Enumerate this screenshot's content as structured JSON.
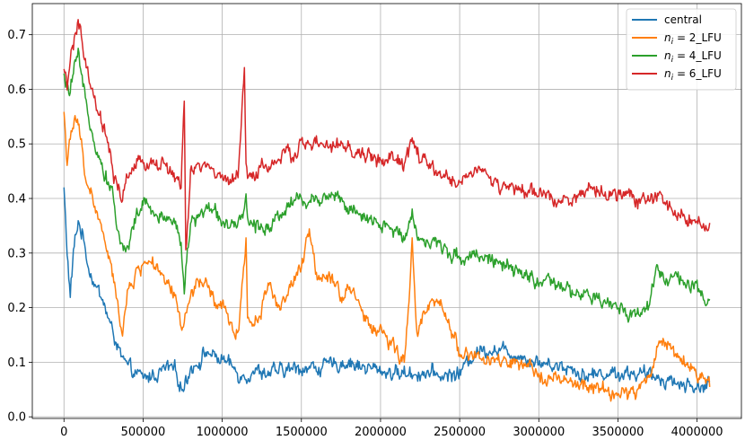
{
  "chart_data": {
    "type": "line",
    "title": "",
    "xlabel": "",
    "ylabel": "",
    "xlim": [
      -200000,
      4280000
    ],
    "ylim": [
      -0.003,
      0.757
    ],
    "xticks": [
      0,
      500000,
      1000000,
      1500000,
      2000000,
      2500000,
      3000000,
      3500000,
      4000000
    ],
    "yticks": [
      0.0,
      0.1,
      0.2,
      0.3,
      0.4,
      0.5,
      0.6,
      0.7
    ],
    "xtick_labels": [
      "0",
      "500000",
      "1000000",
      "1500000",
      "2000000",
      "2500000",
      "3000000",
      "3500000",
      "4000000"
    ],
    "ytick_labels": [
      "0.0",
      "0.1",
      "0.2",
      "0.3",
      "0.4",
      "0.5",
      "0.6",
      "0.7"
    ],
    "grid": true,
    "legend_position": "top-right",
    "series": [
      {
        "name": "central",
        "color": "#1f77b4",
        "points": [
          [
            0,
            0.42
          ],
          [
            20000,
            0.3
          ],
          [
            40000,
            0.22
          ],
          [
            60000,
            0.3
          ],
          [
            90000,
            0.36
          ],
          [
            120000,
            0.33
          ],
          [
            160000,
            0.27
          ],
          [
            200000,
            0.24
          ],
          [
            250000,
            0.21
          ],
          [
            300000,
            0.16
          ],
          [
            330000,
            0.14
          ],
          [
            360000,
            0.11
          ],
          [
            400000,
            0.09
          ],
          [
            450000,
            0.08
          ],
          [
            500000,
            0.07
          ],
          [
            550000,
            0.075
          ],
          [
            600000,
            0.08
          ],
          [
            650000,
            0.09
          ],
          [
            700000,
            0.085
          ],
          [
            750000,
            0.05
          ],
          [
            800000,
            0.09
          ],
          [
            850000,
            0.1
          ],
          [
            900000,
            0.12
          ],
          [
            950000,
            0.11
          ],
          [
            1000000,
            0.105
          ],
          [
            1050000,
            0.095
          ],
          [
            1100000,
            0.08
          ],
          [
            1150000,
            0.075
          ],
          [
            1200000,
            0.085
          ],
          [
            1300000,
            0.08
          ],
          [
            1400000,
            0.085
          ],
          [
            1500000,
            0.09
          ],
          [
            1600000,
            0.09
          ],
          [
            1700000,
            0.095
          ],
          [
            1800000,
            0.1
          ],
          [
            1900000,
            0.09
          ],
          [
            2000000,
            0.085
          ],
          [
            2100000,
            0.08
          ],
          [
            2200000,
            0.08
          ],
          [
            2300000,
            0.08
          ],
          [
            2400000,
            0.075
          ],
          [
            2500000,
            0.08
          ],
          [
            2550000,
            0.1
          ],
          [
            2600000,
            0.12
          ],
          [
            2700000,
            0.125
          ],
          [
            2800000,
            0.12
          ],
          [
            2900000,
            0.11
          ],
          [
            3000000,
            0.1
          ],
          [
            3100000,
            0.095
          ],
          [
            3200000,
            0.09
          ],
          [
            3300000,
            0.075
          ],
          [
            3400000,
            0.08
          ],
          [
            3500000,
            0.08
          ],
          [
            3600000,
            0.08
          ],
          [
            3700000,
            0.075
          ],
          [
            3800000,
            0.07
          ],
          [
            3900000,
            0.06
          ],
          [
            4000000,
            0.055
          ],
          [
            4080000,
            0.06
          ]
        ]
      },
      {
        "name": "n_i = 2_LFU",
        "color": "#ff7f0e",
        "points": [
          [
            0,
            0.56
          ],
          [
            20000,
            0.47
          ],
          [
            40000,
            0.5
          ],
          [
            70000,
            0.55
          ],
          [
            100000,
            0.52
          ],
          [
            130000,
            0.45
          ],
          [
            160000,
            0.42
          ],
          [
            200000,
            0.38
          ],
          [
            250000,
            0.33
          ],
          [
            300000,
            0.27
          ],
          [
            340000,
            0.2
          ],
          [
            370000,
            0.16
          ],
          [
            400000,
            0.22
          ],
          [
            450000,
            0.26
          ],
          [
            500000,
            0.28
          ],
          [
            550000,
            0.29
          ],
          [
            600000,
            0.26
          ],
          [
            650000,
            0.24
          ],
          [
            700000,
            0.22
          ],
          [
            750000,
            0.16
          ],
          [
            800000,
            0.22
          ],
          [
            850000,
            0.25
          ],
          [
            900000,
            0.24
          ],
          [
            950000,
            0.21
          ],
          [
            1000000,
            0.2
          ],
          [
            1050000,
            0.17
          ],
          [
            1100000,
            0.15
          ],
          [
            1150000,
            0.33
          ],
          [
            1160000,
            0.18
          ],
          [
            1200000,
            0.17
          ],
          [
            1250000,
            0.2
          ],
          [
            1300000,
            0.25
          ],
          [
            1350000,
            0.2
          ],
          [
            1400000,
            0.22
          ],
          [
            1450000,
            0.25
          ],
          [
            1500000,
            0.27
          ],
          [
            1550000,
            0.34
          ],
          [
            1600000,
            0.26
          ],
          [
            1700000,
            0.26
          ],
          [
            1750000,
            0.22
          ],
          [
            1800000,
            0.24
          ],
          [
            1850000,
            0.22
          ],
          [
            1900000,
            0.18
          ],
          [
            1950000,
            0.16
          ],
          [
            2000000,
            0.16
          ],
          [
            2050000,
            0.14
          ],
          [
            2100000,
            0.12
          ],
          [
            2150000,
            0.1
          ],
          [
            2180000,
            0.2
          ],
          [
            2200000,
            0.34
          ],
          [
            2230000,
            0.15
          ],
          [
            2300000,
            0.2
          ],
          [
            2350000,
            0.21
          ],
          [
            2400000,
            0.19
          ],
          [
            2450000,
            0.16
          ],
          [
            2500000,
            0.12
          ],
          [
            2600000,
            0.11
          ],
          [
            2700000,
            0.1
          ],
          [
            2800000,
            0.1
          ],
          [
            2900000,
            0.09
          ],
          [
            3000000,
            0.08
          ],
          [
            3100000,
            0.07
          ],
          [
            3200000,
            0.06
          ],
          [
            3300000,
            0.055
          ],
          [
            3400000,
            0.05
          ],
          [
            3500000,
            0.04
          ],
          [
            3600000,
            0.045
          ],
          [
            3700000,
            0.07
          ],
          [
            3750000,
            0.13
          ],
          [
            3800000,
            0.14
          ],
          [
            3850000,
            0.12
          ],
          [
            3900000,
            0.11
          ],
          [
            3950000,
            0.09
          ],
          [
            4000000,
            0.08
          ],
          [
            4080000,
            0.06
          ]
        ]
      },
      {
        "name": "n_i = 4_LFU",
        "color": "#2ca02c",
        "points": [
          [
            0,
            0.62
          ],
          [
            30000,
            0.59
          ],
          [
            60000,
            0.63
          ],
          [
            90000,
            0.66
          ],
          [
            120000,
            0.6
          ],
          [
            160000,
            0.55
          ],
          [
            200000,
            0.5
          ],
          [
            250000,
            0.45
          ],
          [
            300000,
            0.42
          ],
          [
            340000,
            0.34
          ],
          [
            380000,
            0.3
          ],
          [
            420000,
            0.33
          ],
          [
            460000,
            0.37
          ],
          [
            500000,
            0.39
          ],
          [
            550000,
            0.38
          ],
          [
            600000,
            0.36
          ],
          [
            650000,
            0.37
          ],
          [
            700000,
            0.36
          ],
          [
            740000,
            0.32
          ],
          [
            760000,
            0.24
          ],
          [
            800000,
            0.35
          ],
          [
            850000,
            0.37
          ],
          [
            900000,
            0.38
          ],
          [
            950000,
            0.38
          ],
          [
            1000000,
            0.36
          ],
          [
            1050000,
            0.35
          ],
          [
            1100000,
            0.34
          ],
          [
            1150000,
            0.4
          ],
          [
            1160000,
            0.36
          ],
          [
            1200000,
            0.35
          ],
          [
            1300000,
            0.35
          ],
          [
            1350000,
            0.37
          ],
          [
            1400000,
            0.38
          ],
          [
            1450000,
            0.4
          ],
          [
            1500000,
            0.4
          ],
          [
            1550000,
            0.39
          ],
          [
            1600000,
            0.4
          ],
          [
            1700000,
            0.41
          ],
          [
            1750000,
            0.4
          ],
          [
            1800000,
            0.38
          ],
          [
            1850000,
            0.37
          ],
          [
            1900000,
            0.36
          ],
          [
            2000000,
            0.35
          ],
          [
            2100000,
            0.34
          ],
          [
            2150000,
            0.33
          ],
          [
            2200000,
            0.38
          ],
          [
            2230000,
            0.33
          ],
          [
            2300000,
            0.32
          ],
          [
            2400000,
            0.31
          ],
          [
            2500000,
            0.29
          ],
          [
            2600000,
            0.3
          ],
          [
            2700000,
            0.29
          ],
          [
            2800000,
            0.27
          ],
          [
            2900000,
            0.26
          ],
          [
            3000000,
            0.25
          ],
          [
            3100000,
            0.24
          ],
          [
            3200000,
            0.23
          ],
          [
            3300000,
            0.22
          ],
          [
            3400000,
            0.21
          ],
          [
            3500000,
            0.2
          ],
          [
            3600000,
            0.19
          ],
          [
            3650000,
            0.19
          ],
          [
            3700000,
            0.21
          ],
          [
            3750000,
            0.28
          ],
          [
            3800000,
            0.25
          ],
          [
            3850000,
            0.26
          ],
          [
            3900000,
            0.25
          ],
          [
            3950000,
            0.24
          ],
          [
            4000000,
            0.23
          ],
          [
            4050000,
            0.21
          ],
          [
            4080000,
            0.2
          ]
        ]
      },
      {
        "name": "n_i = 6_LFU",
        "color": "#d62728",
        "points": [
          [
            0,
            0.63
          ],
          [
            20000,
            0.6
          ],
          [
            40000,
            0.66
          ],
          [
            70000,
            0.7
          ],
          [
            100000,
            0.72
          ],
          [
            130000,
            0.65
          ],
          [
            170000,
            0.6
          ],
          [
            210000,
            0.56
          ],
          [
            250000,
            0.53
          ],
          [
            290000,
            0.48
          ],
          [
            320000,
            0.43
          ],
          [
            360000,
            0.4
          ],
          [
            400000,
            0.44
          ],
          [
            450000,
            0.46
          ],
          [
            500000,
            0.46
          ],
          [
            550000,
            0.47
          ],
          [
            600000,
            0.46
          ],
          [
            650000,
            0.46
          ],
          [
            700000,
            0.44
          ],
          [
            740000,
            0.42
          ],
          [
            760000,
            0.58
          ],
          [
            770000,
            0.3
          ],
          [
            800000,
            0.44
          ],
          [
            850000,
            0.46
          ],
          [
            900000,
            0.46
          ],
          [
            950000,
            0.45
          ],
          [
            1000000,
            0.43
          ],
          [
            1050000,
            0.44
          ],
          [
            1100000,
            0.44
          ],
          [
            1140000,
            0.64
          ],
          [
            1150000,
            0.45
          ],
          [
            1200000,
            0.44
          ],
          [
            1250000,
            0.46
          ],
          [
            1300000,
            0.46
          ],
          [
            1350000,
            0.47
          ],
          [
            1400000,
            0.48
          ],
          [
            1450000,
            0.48
          ],
          [
            1500000,
            0.5
          ],
          [
            1550000,
            0.5
          ],
          [
            1600000,
            0.5
          ],
          [
            1700000,
            0.49
          ],
          [
            1750000,
            0.5
          ],
          [
            1800000,
            0.49
          ],
          [
            1850000,
            0.48
          ],
          [
            1900000,
            0.48
          ],
          [
            2000000,
            0.47
          ],
          [
            2100000,
            0.47
          ],
          [
            2150000,
            0.46
          ],
          [
            2200000,
            0.51
          ],
          [
            2250000,
            0.47
          ],
          [
            2300000,
            0.46
          ],
          [
            2400000,
            0.44
          ],
          [
            2450000,
            0.43
          ],
          [
            2500000,
            0.43
          ],
          [
            2550000,
            0.44
          ],
          [
            2600000,
            0.46
          ],
          [
            2650000,
            0.45
          ],
          [
            2700000,
            0.43
          ],
          [
            2800000,
            0.42
          ],
          [
            2900000,
            0.41
          ],
          [
            3000000,
            0.41
          ],
          [
            3100000,
            0.4
          ],
          [
            3200000,
            0.4
          ],
          [
            3300000,
            0.41
          ],
          [
            3400000,
            0.41
          ],
          [
            3500000,
            0.41
          ],
          [
            3600000,
            0.4
          ],
          [
            3700000,
            0.4
          ],
          [
            3750000,
            0.4
          ],
          [
            3800000,
            0.39
          ],
          [
            3850000,
            0.38
          ],
          [
            3900000,
            0.37
          ],
          [
            4000000,
            0.36
          ],
          [
            4080000,
            0.34
          ]
        ]
      }
    ]
  }
}
